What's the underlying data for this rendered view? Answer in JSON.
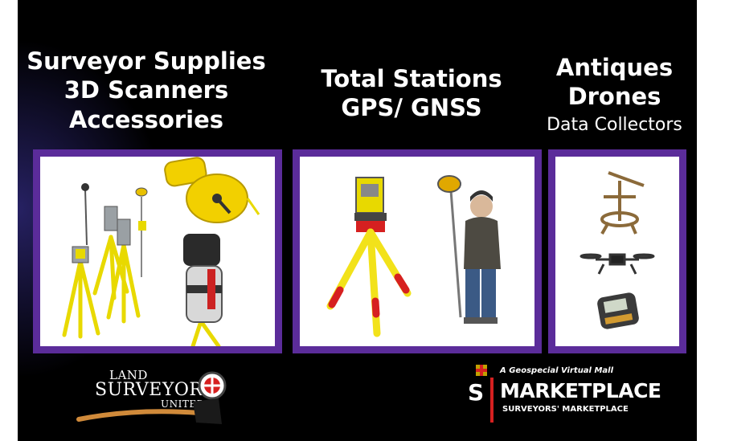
{
  "headings": {
    "left": [
      "Surveyor Supplies",
      "3D Scanners",
      "Accessories"
    ],
    "middle": [
      "Total Stations",
      "GPS/ GNSS"
    ],
    "right": [
      "Antiques",
      "Drones",
      "Data Collectors"
    ]
  },
  "logos": {
    "land_surveyors_united": {
      "line1": "LAND",
      "line2": "SURVEYORS",
      "line3": "UNITED"
    },
    "marketplace": {
      "tagline": "A Geospecial Virtual Mall",
      "name": "MARKETPLACE",
      "letter": "S",
      "subtitle": "SURVEYORS' MARKETPLACE"
    }
  },
  "colors": {
    "panel_frame": "#5b2c9a",
    "background": "#000000",
    "tripod_yellow": "#f2e21a",
    "accent_red": "#d62020"
  }
}
